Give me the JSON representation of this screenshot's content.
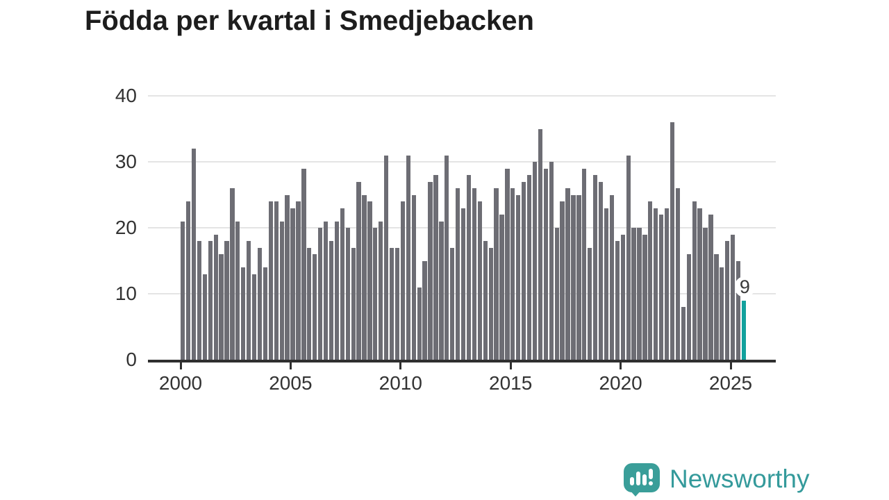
{
  "title": "Födda per kvartal i Smedjebacken",
  "chart_data": {
    "type": "bar",
    "title": "Födda per kvartal i Smedjebacken",
    "unit_per_quarter": "antal födda",
    "x_tick_years": [
      2000,
      2005,
      2010,
      2015,
      2020,
      2025
    ],
    "y_ticks": [
      0,
      10,
      20,
      30,
      40
    ],
    "ylim": [
      0,
      40
    ],
    "grid": "horizontal",
    "series": [
      {
        "year": 2000,
        "values": [
          21,
          24,
          32,
          18
        ]
      },
      {
        "year": 2001,
        "values": [
          13,
          18,
          19,
          16
        ]
      },
      {
        "year": 2002,
        "values": [
          18,
          26,
          21,
          14
        ]
      },
      {
        "year": 2003,
        "values": [
          18,
          13,
          17,
          14
        ]
      },
      {
        "year": 2004,
        "values": [
          24,
          24,
          21,
          25
        ]
      },
      {
        "year": 2005,
        "values": [
          23,
          24,
          29,
          17
        ]
      },
      {
        "year": 2006,
        "values": [
          16,
          20,
          21,
          18
        ]
      },
      {
        "year": 2007,
        "values": [
          21,
          23,
          20,
          17
        ]
      },
      {
        "year": 2008,
        "values": [
          27,
          25,
          24,
          20
        ]
      },
      {
        "year": 2009,
        "values": [
          21,
          31,
          17,
          17
        ]
      },
      {
        "year": 2010,
        "values": [
          24,
          31,
          25,
          11
        ]
      },
      {
        "year": 2011,
        "values": [
          15,
          27,
          28,
          21
        ]
      },
      {
        "year": 2012,
        "values": [
          31,
          17,
          26,
          23
        ]
      },
      {
        "year": 2013,
        "values": [
          28,
          26,
          24,
          18
        ]
      },
      {
        "year": 2014,
        "values": [
          17,
          26,
          22,
          29
        ]
      },
      {
        "year": 2015,
        "values": [
          26,
          25,
          27,
          28
        ]
      },
      {
        "year": 2016,
        "values": [
          30,
          35,
          29,
          30
        ]
      },
      {
        "year": 2017,
        "values": [
          20,
          24,
          26,
          25
        ]
      },
      {
        "year": 2018,
        "values": [
          25,
          29,
          17,
          28
        ]
      },
      {
        "year": 2019,
        "values": [
          27,
          23,
          25,
          18
        ]
      },
      {
        "year": 2020,
        "values": [
          19,
          31,
          20,
          20
        ]
      },
      {
        "year": 2021,
        "values": [
          19,
          24,
          23,
          22
        ]
      },
      {
        "year": 2022,
        "values": [
          23,
          36,
          26,
          8
        ]
      },
      {
        "year": 2023,
        "values": [
          16,
          24,
          23,
          20
        ]
      },
      {
        "year": 2024,
        "values": [
          22,
          16,
          14,
          18
        ]
      },
      {
        "year": 2025,
        "values": [
          19,
          15,
          9
        ]
      }
    ],
    "highlight": {
      "quarter": "2025 Q3",
      "value": 9,
      "label": "9"
    },
    "colors": {
      "bar": "#6d6d74",
      "highlight_bar": "#12a19d",
      "grid": "#e4e4e4",
      "axis": "#2f2f2f",
      "tick_text": "#333333"
    }
  },
  "branding": {
    "logo_text": "Newsworthy",
    "logo_icon": "speech-bubble-bar-chart",
    "color": "#349a9b"
  }
}
